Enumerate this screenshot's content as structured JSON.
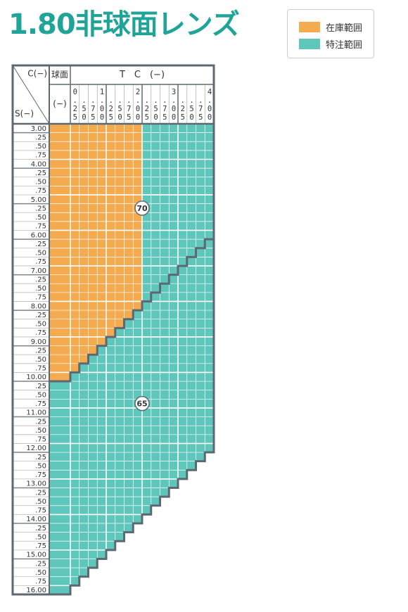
{
  "title": "1.80非球面レンズ",
  "legend": [
    {
      "label": "在庫範囲",
      "color": "#f4aa4e"
    },
    {
      "label": "特注範囲",
      "color": "#5ec6bb"
    }
  ],
  "table": {
    "corner_top": "C(−)",
    "corner_bottom": "S(−)",
    "sphere_header": "球面",
    "sphere_sub": "(−)",
    "cyl_header": "T　C　(−)",
    "columns": [
      "0.25",
      ".50",
      ".75",
      "1.00",
      ".25",
      ".50",
      ".75",
      "2.00",
      ".25",
      ".50",
      ".75",
      "3.00",
      ".25",
      ".50",
      ".75",
      "4.00"
    ],
    "zones": [
      "70",
      "65"
    ],
    "rows": [
      {
        "label": "3.00",
        "cells": [
          9,
          8
        ],
        "zone": 17
      },
      {
        "label": ".25",
        "cells": [
          9,
          8
        ],
        "zone": 17
      },
      {
        "label": ".50",
        "cells": [
          9,
          8
        ],
        "zone": 17
      },
      {
        "label": ".75",
        "cells": [
          9,
          8
        ],
        "zone": 17
      },
      {
        "label": "4.00",
        "cells": [
          9,
          8
        ],
        "zone": 17
      },
      {
        "label": ".25",
        "cells": [
          9,
          8
        ],
        "zone": 17
      },
      {
        "label": ".50",
        "cells": [
          9,
          8
        ],
        "zone": 17
      },
      {
        "label": ".75",
        "cells": [
          9,
          8
        ],
        "zone": 17
      },
      {
        "label": "5.00",
        "cells": [
          9,
          8
        ],
        "zone": 17
      },
      {
        "label": ".25",
        "cells": [
          9,
          8
        ],
        "zone": 17
      },
      {
        "label": ".50",
        "cells": [
          9,
          8
        ],
        "zone": 17
      },
      {
        "label": ".75",
        "cells": [
          9,
          8
        ],
        "zone": 17
      },
      {
        "label": "6.00",
        "cells": [
          9,
          8
        ],
        "zone": 17
      },
      {
        "label": ".25",
        "cells": [
          9,
          8
        ],
        "zone": 16
      },
      {
        "label": ".50",
        "cells": [
          9,
          8
        ],
        "zone": 15
      },
      {
        "label": ".75",
        "cells": [
          9,
          8
        ],
        "zone": 14
      },
      {
        "label": "7.00",
        "cells": [
          9,
          8
        ],
        "zone": 13
      },
      {
        "label": ".25",
        "cells": [
          9,
          8
        ],
        "zone": 12
      },
      {
        "label": ".50",
        "cells": [
          9,
          8
        ],
        "zone": 11
      },
      {
        "label": ".75",
        "cells": [
          9,
          8
        ],
        "zone": 10
      },
      {
        "label": "8.00",
        "cells": [
          9,
          8
        ],
        "zone": 9
      },
      {
        "label": ".25",
        "cells": [
          8,
          9
        ],
        "zone": 8
      },
      {
        "label": ".50",
        "cells": [
          7,
          10
        ],
        "zone": 7
      },
      {
        "label": ".75",
        "cells": [
          6,
          11
        ],
        "zone": 6
      },
      {
        "label": "9.00",
        "cells": [
          5,
          12
        ],
        "zone": 5
      },
      {
        "label": ".25",
        "cells": [
          4,
          13
        ],
        "zone": 4
      },
      {
        "label": ".50",
        "cells": [
          3,
          14
        ],
        "zone": 3
      },
      {
        "label": ".75",
        "cells": [
          2,
          15
        ],
        "zone": 2
      },
      {
        "label": "10.00",
        "cells": [
          1,
          16
        ],
        "zone": 1
      },
      {
        "label": ".25",
        "cells": [
          0,
          17
        ],
        "zone": 0
      },
      {
        "label": ".50",
        "cells": [
          0,
          17
        ],
        "zone": 0
      },
      {
        "label": ".75",
        "cells": [
          0,
          17
        ],
        "zone": 0
      },
      {
        "label": "11.00",
        "cells": [
          0,
          17
        ],
        "zone": 0
      },
      {
        "label": ".25",
        "cells": [
          0,
          17
        ],
        "zone": 0
      },
      {
        "label": ".50",
        "cells": [
          0,
          17
        ],
        "zone": 0
      },
      {
        "label": ".75",
        "cells": [
          0,
          17
        ],
        "zone": 0
      },
      {
        "label": "12.00",
        "cells": [
          0,
          17
        ],
        "zone": 0
      },
      {
        "label": ".25",
        "cells": [
          0,
          16
        ],
        "zone": 0
      },
      {
        "label": ".50",
        "cells": [
          0,
          15
        ],
        "zone": 0
      },
      {
        "label": ".75",
        "cells": [
          0,
          14
        ],
        "zone": 0
      },
      {
        "label": "13.00",
        "cells": [
          0,
          13
        ],
        "zone": 0
      },
      {
        "label": ".25",
        "cells": [
          0,
          12
        ],
        "zone": 0
      },
      {
        "label": ".50",
        "cells": [
          0,
          11
        ],
        "zone": 0
      },
      {
        "label": ".75",
        "cells": [
          0,
          10
        ],
        "zone": 0
      },
      {
        "label": "14.00",
        "cells": [
          0,
          9
        ],
        "zone": 0
      },
      {
        "label": ".25",
        "cells": [
          0,
          8
        ],
        "zone": 0
      },
      {
        "label": ".50",
        "cells": [
          0,
          7
        ],
        "zone": 0
      },
      {
        "label": ".75",
        "cells": [
          0,
          6
        ],
        "zone": 0
      },
      {
        "label": "15.00",
        "cells": [
          0,
          5
        ],
        "zone": 0
      },
      {
        "label": ".25",
        "cells": [
          0,
          4
        ],
        "zone": 0
      },
      {
        "label": ".50",
        "cells": [
          0,
          3
        ],
        "zone": 0
      },
      {
        "label": ".75",
        "cells": [
          0,
          2
        ],
        "zone": 0
      },
      {
        "label": "16.00",
        "cells": [
          0,
          1
        ],
        "zone": 0
      }
    ]
  }
}
